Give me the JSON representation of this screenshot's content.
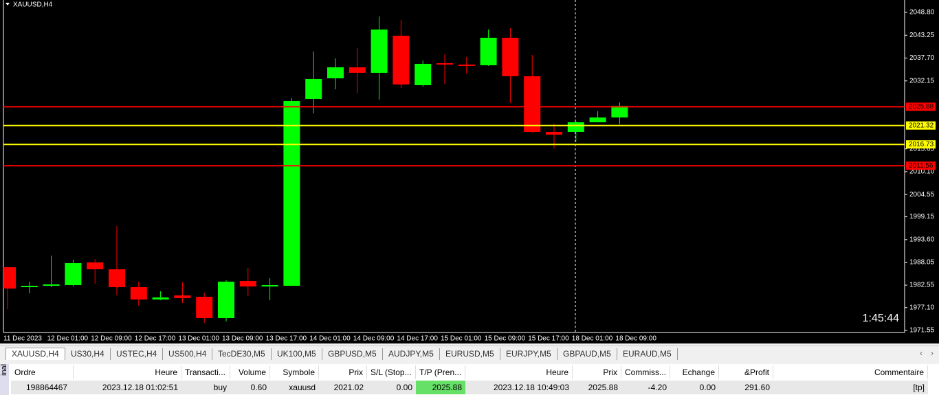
{
  "chart_data": {
    "type": "candlestick",
    "title": "XAUUSD,H4",
    "countdown": "1:45:44",
    "categories": [
      "11 Dec 2023",
      null,
      "12 Dec 01:00",
      null,
      "12 Dec 09:00",
      null,
      "12 Dec 17:00",
      null,
      "13 Dec 01:00",
      null,
      "13 Dec 09:00",
      null,
      "13 Dec 17:00",
      null,
      "14 Dec 01:00",
      null,
      "14 Dec 09:00",
      null,
      "14 Dec 17:00",
      null,
      "15 Dec 01:00",
      null,
      "15 Dec 09:00",
      null,
      "15 Dec 17:00",
      null,
      "18 Dec 01:00",
      null,
      "18 Dec 09:00"
    ],
    "open": [
      1986.9,
      1982.06,
      1982.39,
      1982.56,
      1988.07,
      1986.4,
      1982.06,
      1979.06,
      1980.06,
      1979.72,
      1974.55,
      1983.56,
      1982.23,
      1982.39,
      2027.78,
      2032.78,
      2035.45,
      2034.12,
      2043.13,
      2031.11,
      2036.45,
      2036.12,
      2035.95,
      2042.63,
      2033.28,
      2019.77,
      2019.77,
      2022.1,
      2023.27
    ],
    "high": [
      1986.9,
      1983.39,
      1989.73,
      1988.73,
      1988.9,
      1996.91,
      1983.39,
      1981.06,
      1983.23,
      1980.72,
      1983.73,
      1986.73,
      1984.23,
      2027.94,
      2039.29,
      2037.62,
      2040.12,
      2047.8,
      2046.96,
      2037.12,
      2038.62,
      2037.96,
      2044.63,
      2044.96,
      2038.46,
      2021.77,
      2022.44,
      2024.77,
      2026.94
    ],
    "low": [
      1976.72,
      1980.56,
      1982.06,
      1982.23,
      1982.89,
      1980.06,
      1977.56,
      1978.89,
      1978.22,
      1973.38,
      1973.72,
      1979.89,
      1978.89,
      1982.39,
      2024.27,
      2030.11,
      2029.11,
      2027.61,
      2030.45,
      2030.78,
      2031.45,
      2033.95,
      2035.79,
      2026.78,
      2019.6,
      2015.76,
      2017.43,
      2022.1,
      2021.6
    ],
    "close": [
      1981.73,
      1982.39,
      1982.73,
      1987.9,
      1986.4,
      1982.06,
      1979.06,
      1979.56,
      1979.39,
      1974.55,
      1983.39,
      1982.23,
      1982.56,
      2027.28,
      2032.62,
      2035.45,
      2034.12,
      2044.63,
      2031.28,
      2036.29,
      2036.12,
      2035.79,
      2042.63,
      2033.28,
      2019.77,
      2019.1,
      2022.1,
      2023.27,
      2026.11
    ],
    "up_color": "#00ff00",
    "down_color": "#ff0000",
    "ylim": [
      1971.05,
      2051.8
    ],
    "yticks": [
      {
        "value": 2048.8,
        "label": "2048.80"
      },
      {
        "value": 2043.25,
        "label": "2043.25"
      },
      {
        "value": 2037.7,
        "label": "2037.70"
      },
      {
        "value": 2032.15,
        "label": "2032.15"
      },
      {
        "value": 2015.65,
        "label": "2015.65"
      },
      {
        "value": 2010.1,
        "label": "2010.10"
      },
      {
        "value": 2004.55,
        "label": "2004.55"
      },
      {
        "value": 1999.15,
        "label": "1999.15"
      },
      {
        "value": 1993.6,
        "label": "1993.60"
      },
      {
        "value": 1988.05,
        "label": "1988.05"
      },
      {
        "value": 1982.55,
        "label": "1982.55"
      },
      {
        "value": 1977.1,
        "label": "1977.10"
      },
      {
        "value": 1971.55,
        "label": "1971.55"
      }
    ],
    "levels": [
      {
        "value": 2025.88,
        "color": "#ff0000"
      },
      {
        "value": 2021.32,
        "color": "#ffff00"
      },
      {
        "value": 2016.73,
        "color": "#ffff00"
      },
      {
        "value": 2011.56,
        "color": "#ff0000"
      }
    ]
  },
  "tabs": [
    "XAUUSD,H4",
    "US30,H4",
    "USTEC,H4",
    "US500,H4",
    "TecDE30,M5",
    "UK100,M5",
    "GBPUSD,M5",
    "AUDJPY,M5",
    "EURUSD,M5",
    "EURJPY,M5",
    "GBPAUD,M5",
    "EURAUD,M5"
  ],
  "side_label": "inal",
  "table": {
    "header": [
      "Ordre",
      "Heure",
      "Transacti...",
      "Volume",
      "Symbole",
      "Prix",
      "S/L (Stop...",
      "T/P (Pren...",
      "Heure",
      "Prix",
      "Commiss...",
      "Echange",
      "&Profit",
      "Commentaire"
    ],
    "rows": [
      [
        "198864467",
        "2023.12.18 01:02:51",
        "buy",
        "0.60",
        "xauusd",
        "2021.02",
        "0.00",
        "2025.88",
        "2023.12.18 10:49:03",
        "2025.88",
        "-4.20",
        "0.00",
        "291.60",
        "[tp]"
      ]
    ]
  }
}
